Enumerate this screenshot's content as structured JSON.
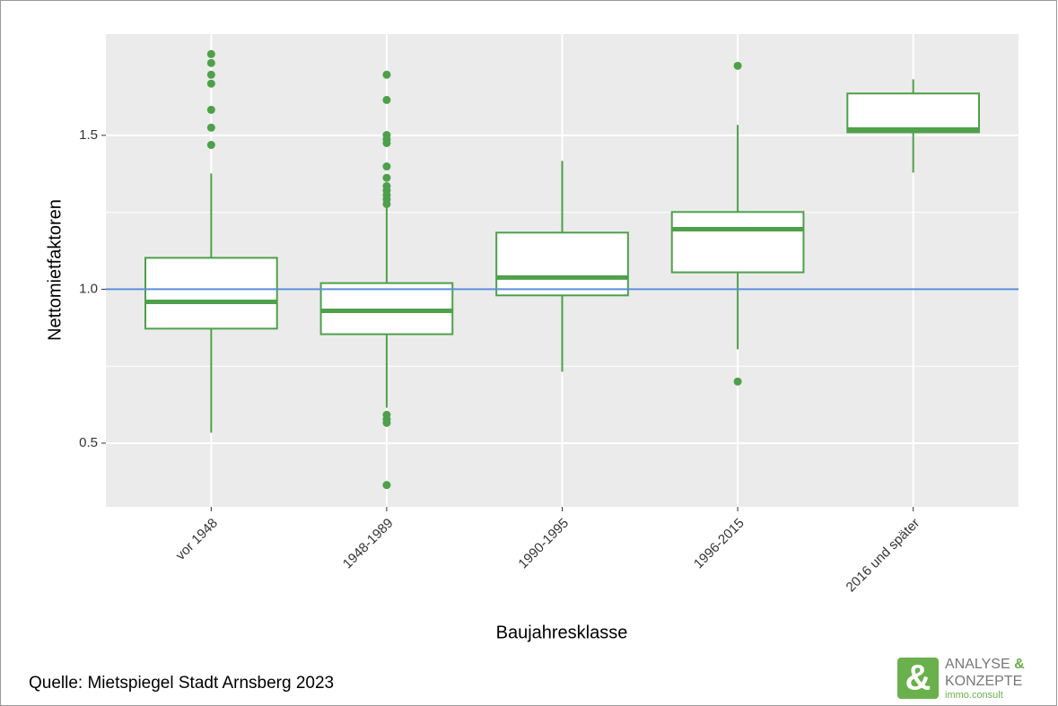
{
  "chart_data": {
    "type": "box",
    "xlabel": "Baujahresklasse",
    "ylabel": "Nettomietfaktoren",
    "categories": [
      "vor 1948",
      "1948-1989",
      "1990-1995",
      "1996-2015",
      "2016 und später"
    ],
    "boxes": [
      {
        "whisker_low": 0.534,
        "q1": 0.872,
        "median": 0.959,
        "q3": 1.102,
        "whisker_high": 1.376,
        "outliers": [
          1.764,
          1.735,
          1.697,
          1.668,
          1.583,
          1.525,
          1.469
        ]
      },
      {
        "whisker_low": 0.615,
        "q1": 0.854,
        "median": 0.93,
        "q3": 1.02,
        "whisker_high": 1.265,
        "outliers": [
          1.697,
          1.615,
          1.501,
          1.487,
          1.475,
          1.399,
          1.362,
          1.335,
          1.321,
          1.306,
          1.292,
          1.277,
          0.592,
          0.577,
          0.566,
          0.364
        ]
      },
      {
        "whisker_low": 0.732,
        "q1": 0.98,
        "median": 1.038,
        "q3": 1.184,
        "whisker_high": 1.417,
        "outliers": []
      },
      {
        "whisker_low": 0.805,
        "q1": 1.055,
        "median": 1.195,
        "q3": 1.251,
        "whisker_high": 1.534,
        "outliers": [
          1.726,
          0.7
        ]
      },
      {
        "whisker_low": 1.379,
        "q1": 1.51,
        "median": 1.519,
        "q3": 1.636,
        "whisker_high": 1.682,
        "outliers": []
      }
    ],
    "color": "#4ea04a",
    "reference_line": 1,
    "reference_color": "#5b8fd9",
    "ylim": [
      0.293,
      1.829
    ],
    "yticks": [
      0.5,
      {
        "value": 1,
        "label": "1.0"
      },
      1.5
    ],
    "minor_yticks": [
      0.75,
      1.25
    ],
    "grid": true
  },
  "source": "Quelle: Mietspiegel Stadt Arnsberg 2023",
  "logo": {
    "symbol": "&",
    "line1": "ANALYSE",
    "line1_symbol": "&",
    "line2": "KONZEPTE",
    "line3": "immo.consult"
  }
}
